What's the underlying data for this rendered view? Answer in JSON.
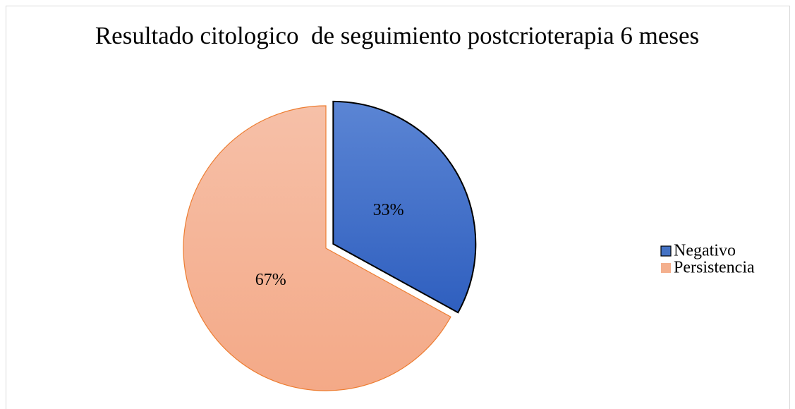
{
  "chart_data": {
    "type": "pie",
    "title": "Resultado citologico  de seguimiento postcrioterapia 6 meses",
    "categories": [
      "Negativo",
      "Persistencia"
    ],
    "values": [
      33,
      67
    ],
    "value_labels": [
      "33%",
      "67%"
    ],
    "colors": [
      "#4472c4",
      "#f4b08e"
    ],
    "exploded": [
      true,
      false
    ],
    "legend": "right"
  }
}
